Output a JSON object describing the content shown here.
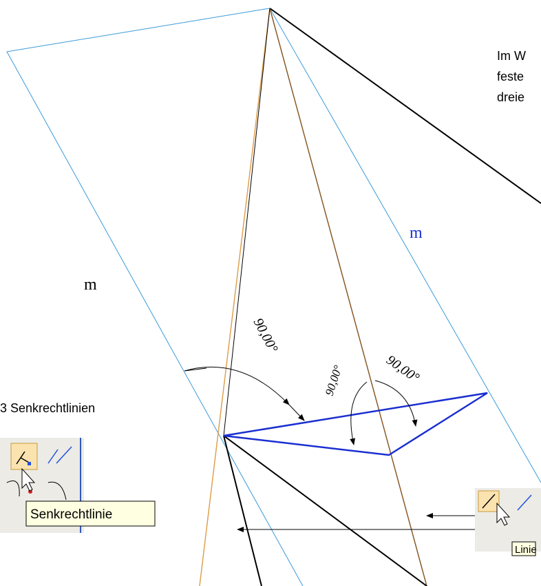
{
  "annotation": {
    "lines": [
      "Im W",
      "feste",
      "dreie"
    ]
  },
  "edge_labels": [
    "m",
    "m"
  ],
  "dimensions": [
    "90,00°",
    "90,00°",
    "90,00°"
  ],
  "caption": "3 Senkrechtlinien",
  "tooltips": [
    "Senkrechtlinie",
    "Linie"
  ]
}
